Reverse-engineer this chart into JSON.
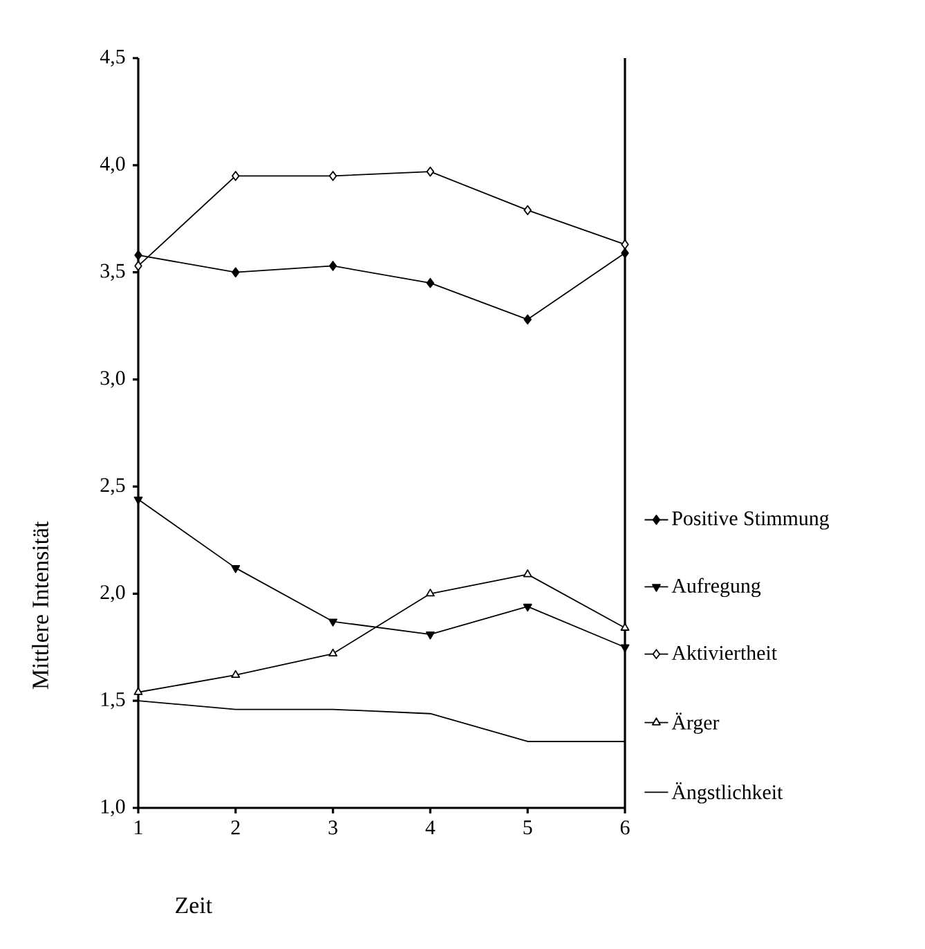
{
  "chart_data": {
    "type": "line",
    "xlabel": "Zeit",
    "ylabel": "Mittlere Intensität",
    "x": [
      1,
      2,
      3,
      4,
      5,
      6
    ],
    "xlim": [
      1,
      6
    ],
    "xticks": [
      1,
      2,
      3,
      4,
      5,
      6
    ],
    "ylim": [
      1,
      4.5
    ],
    "yticks": [
      {
        "value": 1.0,
        "label": "1,0"
      },
      {
        "value": 1.5,
        "label": "1,5"
      },
      {
        "value": 2.0,
        "label": "2,0"
      },
      {
        "value": 2.5,
        "label": "2,5"
      },
      {
        "value": 3.0,
        "label": "3,0"
      },
      {
        "value": 3.5,
        "label": "3,5"
      },
      {
        "value": 4.0,
        "label": "4,0"
      },
      {
        "value": 4.5,
        "label": "4,5"
      }
    ],
    "legend": "right",
    "grid": false,
    "line_style": "solid",
    "series": [
      {
        "name": "Positive Stimmung",
        "color": "#000000",
        "marker": "diamond",
        "values": [
          3.58,
          3.5,
          3.53,
          3.45,
          3.28,
          3.59
        ]
      },
      {
        "name": "Aufregung",
        "color": "#000000",
        "marker": "triangle-down",
        "values": [
          2.44,
          2.12,
          1.87,
          1.81,
          1.94,
          1.75
        ]
      },
      {
        "name": "Aktiviertheit",
        "color": "#000000",
        "marker": "diamond-open",
        "values": [
          3.53,
          3.95,
          3.95,
          3.97,
          3.79,
          3.63
        ]
      },
      {
        "name": "Ärger",
        "color": "#000000",
        "marker": "triangle-open",
        "values": [
          1.54,
          1.62,
          1.72,
          2.0,
          2.09,
          1.84
        ]
      },
      {
        "name": "Ängstlichkeit",
        "color": "#000000",
        "marker": "none",
        "values": [
          1.5,
          1.46,
          1.46,
          1.44,
          1.31,
          1.31
        ]
      }
    ]
  }
}
